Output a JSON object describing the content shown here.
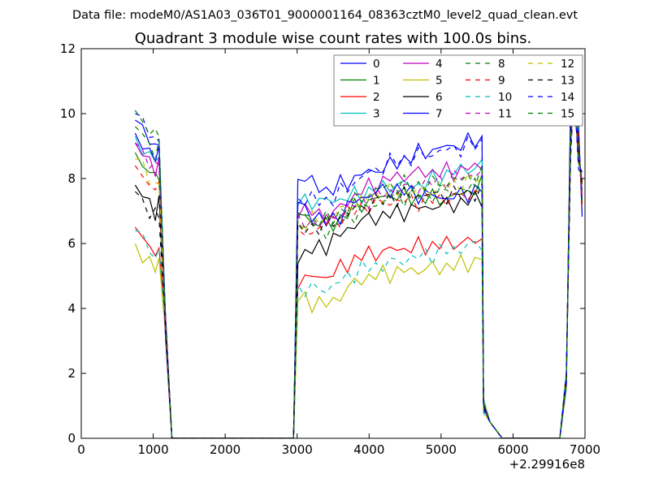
{
  "chart_data": {
    "type": "line",
    "suptitle": "Data file: modeM0/AS1A03_036T01_9000001164_08363cztM0_level2_quad_clean.evt",
    "title": "Quadrant 3 module wise count rates with 100.0s bins.",
    "xlabel": "",
    "ylabel": "",
    "x_offset_label": "+2.29916e8",
    "xlim": [
      0,
      7000
    ],
    "ylim": [
      0,
      12
    ],
    "xticks": [
      0,
      1000,
      2000,
      3000,
      4000,
      5000,
      6000,
      7000
    ],
    "yticks": [
      0,
      2,
      4,
      6,
      8,
      10,
      12
    ],
    "legend": {
      "placement": "top-right",
      "columns": 4
    },
    "series": [
      {
        "name": "0",
        "color": "#0000ff",
        "dash": "solid",
        "base": [
          9.8,
          8.1,
          7.6,
          8.1,
          8.4,
          8.8,
          9.0,
          9.2
        ]
      },
      {
        "name": "1",
        "color": "#008000",
        "dash": "solid",
        "base": [
          8.8,
          6.9,
          6.5,
          7.2,
          7.5,
          7.4,
          7.4,
          7.8
        ]
      },
      {
        "name": "2",
        "color": "#ff0000",
        "dash": "solid",
        "base": [
          6.5,
          4.9,
          5.0,
          5.6,
          5.8,
          5.9,
          6.0,
          6.1
        ]
      },
      {
        "name": "3",
        "color": "#00bfbf",
        "dash": "solid",
        "base": [
          9.3,
          7.3,
          7.3,
          7.5,
          7.8,
          7.8,
          8.2,
          8.4
        ]
      },
      {
        "name": "4",
        "color": "#bf00bf",
        "dash": "solid",
        "base": [
          9.1,
          7.1,
          6.8,
          7.6,
          8.0,
          8.2,
          8.2,
          8.4
        ]
      },
      {
        "name": "5",
        "color": "#bfbf00",
        "dash": "solid",
        "base": [
          6.0,
          4.3,
          4.1,
          4.9,
          5.1,
          5.2,
          5.3,
          5.5
        ]
      },
      {
        "name": "6",
        "color": "#000000",
        "dash": "solid",
        "base": [
          7.8,
          5.6,
          6.0,
          6.7,
          6.9,
          7.1,
          7.2,
          7.4
        ]
      },
      {
        "name": "7",
        "color": "#0000ff",
        "dash": "solid",
        "base": [
          9.4,
          7.2,
          6.6,
          7.4,
          7.7,
          7.5,
          7.4,
          7.7
        ]
      },
      {
        "name": "8",
        "color": "#008000",
        "dash": "dash",
        "base": [
          9.6,
          6.6,
          6.4,
          7.0,
          7.4,
          7.5,
          7.6,
          7.8
        ]
      },
      {
        "name": "9",
        "color": "#ff0000",
        "dash": "dash",
        "base": [
          8.4,
          6.2,
          6.6,
          7.1,
          7.3,
          7.3,
          7.4,
          7.6
        ]
      },
      {
        "name": "10",
        "color": "#00bfbf",
        "dash": "dash",
        "base": [
          6.4,
          4.6,
          4.6,
          5.2,
          5.4,
          5.6,
          5.8,
          6.0
        ]
      },
      {
        "name": "11",
        "color": "#bf00bf",
        "dash": "dash",
        "base": [
          9.1,
          6.6,
          6.7,
          7.3,
          7.6,
          7.8,
          8.0,
          8.2
        ]
      },
      {
        "name": "12",
        "color": "#bfbf00",
        "dash": "dash",
        "base": [
          8.6,
          6.6,
          6.8,
          7.3,
          7.6,
          7.6,
          7.8,
          8.0
        ]
      },
      {
        "name": "13",
        "color": "#000000",
        "dash": "dash",
        "base": [
          7.6,
          6.4,
          6.6,
          7.1,
          7.4,
          7.5,
          7.5,
          7.6
        ]
      },
      {
        "name": "14",
        "color": "#0000ff",
        "dash": "dash",
        "base": [
          10.0,
          7.4,
          7.3,
          8.0,
          8.5,
          8.7,
          8.9,
          9.1
        ]
      },
      {
        "name": "15",
        "color": "#008000",
        "dash": "dash",
        "base": [
          10.1,
          6.9,
          6.7,
          7.4,
          7.8,
          7.8,
          7.9,
          8.1
        ]
      }
    ],
    "segment_times": {
      "orbit1_start": 750,
      "orbit1_end": 1080,
      "drop1_end": 1260,
      "orbit2_start": 2950,
      "orbit2_rise": 3010,
      "orbit2_end": 5570,
      "drop2_end": 5850,
      "orbit3_start": 6650,
      "orbit3_end": 6960
    }
  }
}
